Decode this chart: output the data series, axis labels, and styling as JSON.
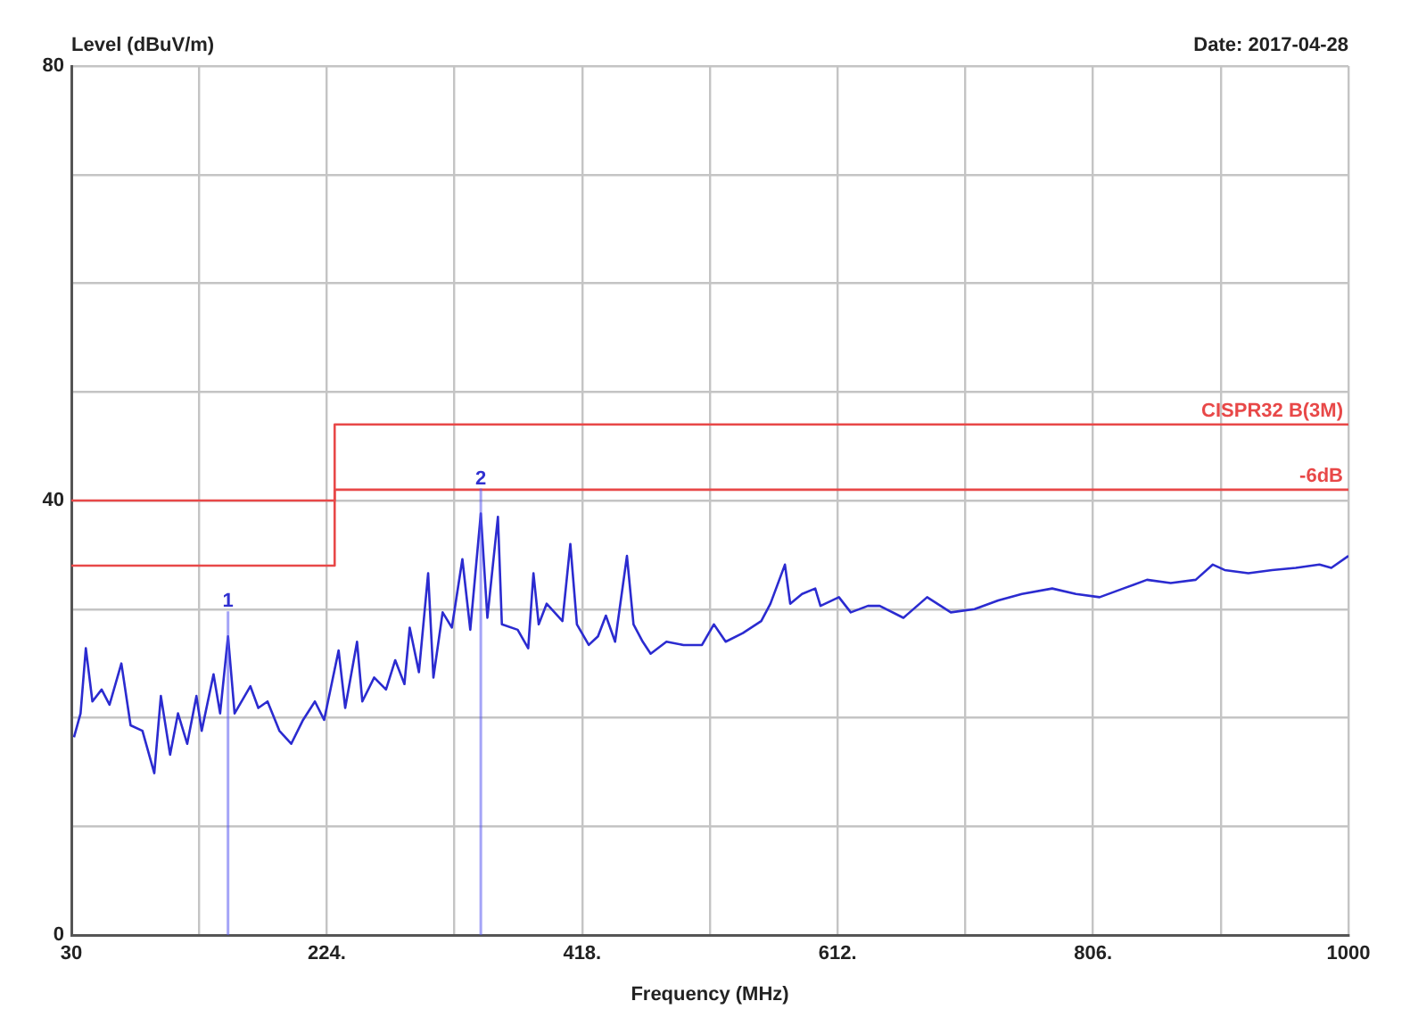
{
  "chart_data": {
    "type": "line",
    "xlabel": "Frequency (MHz)",
    "ylabel": "Level (dBuV/m)",
    "annotations": [
      "Date: 2017-04-28",
      {
        "text": "1",
        "x": 149,
        "y": 27.5
      },
      {
        "text": "2",
        "x": 341,
        "y": 38.8
      }
    ],
    "xlim": [
      30,
      1000
    ],
    "xticks": [
      30,
      {
        "value": 127,
        "label": null
      },
      {
        "value": 224,
        "label": "224."
      },
      {
        "value": 321,
        "label": null
      },
      {
        "value": 418,
        "label": "418."
      },
      {
        "value": 515,
        "label": null
      },
      {
        "value": 612,
        "label": "612."
      },
      {
        "value": 709,
        "label": null
      },
      {
        "value": 806,
        "label": "806."
      },
      {
        "value": 903,
        "label": null
      },
      1000
    ],
    "ylim": [
      0,
      80
    ],
    "yticks": [
      0,
      {
        "value": 10,
        "label": null
      },
      {
        "value": 20,
        "label": null
      },
      {
        "value": 30,
        "label": null
      },
      40,
      {
        "value": 50,
        "label": null
      },
      {
        "value": 60,
        "label": null
      },
      {
        "value": 70,
        "label": null
      },
      80
    ],
    "grid": true,
    "legend": false,
    "marker": "none",
    "series": [
      {
        "color": "#2b2bd0",
        "x": [
          32,
          37,
          41,
          46,
          53,
          59,
          68,
          75,
          84,
          93,
          98,
          105,
          111,
          118,
          125,
          129,
          138,
          143,
          149,
          154,
          166,
          172,
          179,
          188,
          197,
          206,
          215,
          222,
          233,
          238,
          247,
          251,
          260,
          269,
          276,
          283,
          287,
          294,
          301,
          305,
          312,
          319,
          327,
          333,
          341,
          346,
          354,
          357,
          369,
          377,
          381,
          385,
          391,
          403,
          409,
          414,
          423,
          430,
          436,
          443,
          452,
          457,
          464,
          470,
          482,
          495,
          509,
          518,
          527,
          540,
          554,
          561,
          572,
          576,
          585,
          595,
          599,
          613,
          622,
          635,
          644,
          662,
          680,
          698,
          716,
          734,
          752,
          775,
          793,
          811,
          829,
          847,
          865,
          884,
          897,
          906,
          924,
          942,
          960,
          978,
          987,
          1000
        ],
        "values": [
          18.2,
          20.4,
          26.4,
          21.5,
          22.6,
          21.2,
          25.0,
          19.3,
          18.8,
          14.9,
          22.0,
          16.6,
          20.4,
          17.6,
          22.0,
          18.8,
          24.0,
          20.4,
          27.5,
          20.4,
          22.9,
          20.9,
          21.5,
          18.8,
          17.6,
          19.8,
          21.5,
          19.8,
          26.2,
          20.9,
          27.0,
          21.5,
          23.7,
          22.6,
          25.3,
          23.1,
          28.3,
          24.2,
          33.3,
          23.7,
          29.7,
          28.3,
          34.6,
          28.1,
          38.8,
          29.2,
          38.5,
          28.6,
          28.1,
          26.4,
          33.3,
          28.6,
          30.5,
          28.9,
          36.0,
          28.6,
          26.7,
          27.5,
          29.4,
          27.0,
          34.9,
          28.6,
          27.0,
          25.9,
          27.0,
          26.7,
          26.7,
          28.6,
          27.0,
          27.8,
          28.9,
          30.5,
          34.1,
          30.5,
          31.4,
          31.9,
          30.3,
          31.1,
          29.7,
          30.3,
          30.3,
          29.2,
          31.1,
          29.7,
          30.0,
          30.8,
          31.4,
          31.9,
          31.4,
          31.1,
          31.9,
          32.7,
          32.4,
          32.7,
          34.1,
          33.6,
          33.3,
          33.6,
          33.8,
          34.1,
          33.8,
          34.9
        ]
      },
      {
        "name": "CISPR32 B(3M)",
        "color": "#e84848",
        "x": [
          30,
          230,
          230,
          1000
        ],
        "values": [
          40,
          40,
          47,
          47
        ]
      },
      {
        "name": "-6dB",
        "color": "#e84848",
        "x": [
          30,
          230,
          230,
          1000
        ],
        "values": [
          34,
          34,
          41,
          41
        ]
      }
    ]
  }
}
